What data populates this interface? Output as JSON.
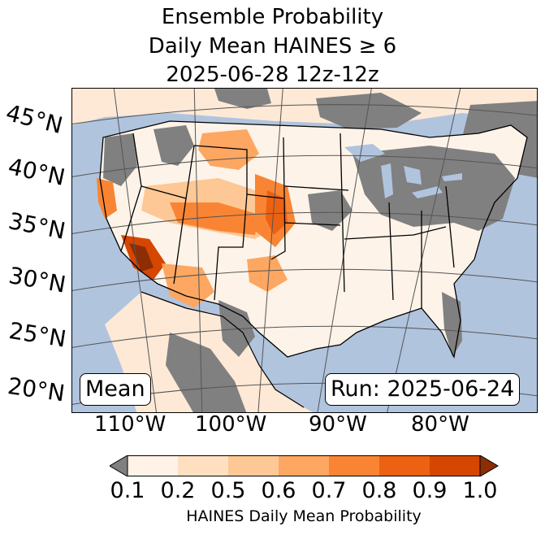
{
  "title": {
    "line1": "Ensemble Probability",
    "line2": "Daily Mean HAINES ≥ 6",
    "line3": "2025-06-28 12z-12z"
  },
  "map": {
    "lat_labels": [
      "45°N",
      "40°N",
      "35°N",
      "30°N",
      "25°N",
      "20°N"
    ],
    "lon_labels": [
      "110°W",
      "100°W",
      "90°W",
      "80°W"
    ],
    "mean_label": "Mean",
    "run_label": "Run: 2025-06-24",
    "colors": {
      "ocean": "#b0c4de",
      "no_data_gray": "#808080",
      "border": "#000000",
      "grid": "#555555"
    }
  },
  "colorbar": {
    "ticks": [
      "0.1",
      "0.2",
      "0.5",
      "0.6",
      "0.7",
      "0.8",
      "0.9",
      "1.0"
    ],
    "label": "HAINES Daily Mean Probability",
    "colors": [
      "#fff2e6",
      "#fee0c1",
      "#fdc895",
      "#fda762",
      "#f98534",
      "#ec6112",
      "#d54601"
    ],
    "under_color": "#808080",
    "over_color": "#8c2d04"
  }
}
